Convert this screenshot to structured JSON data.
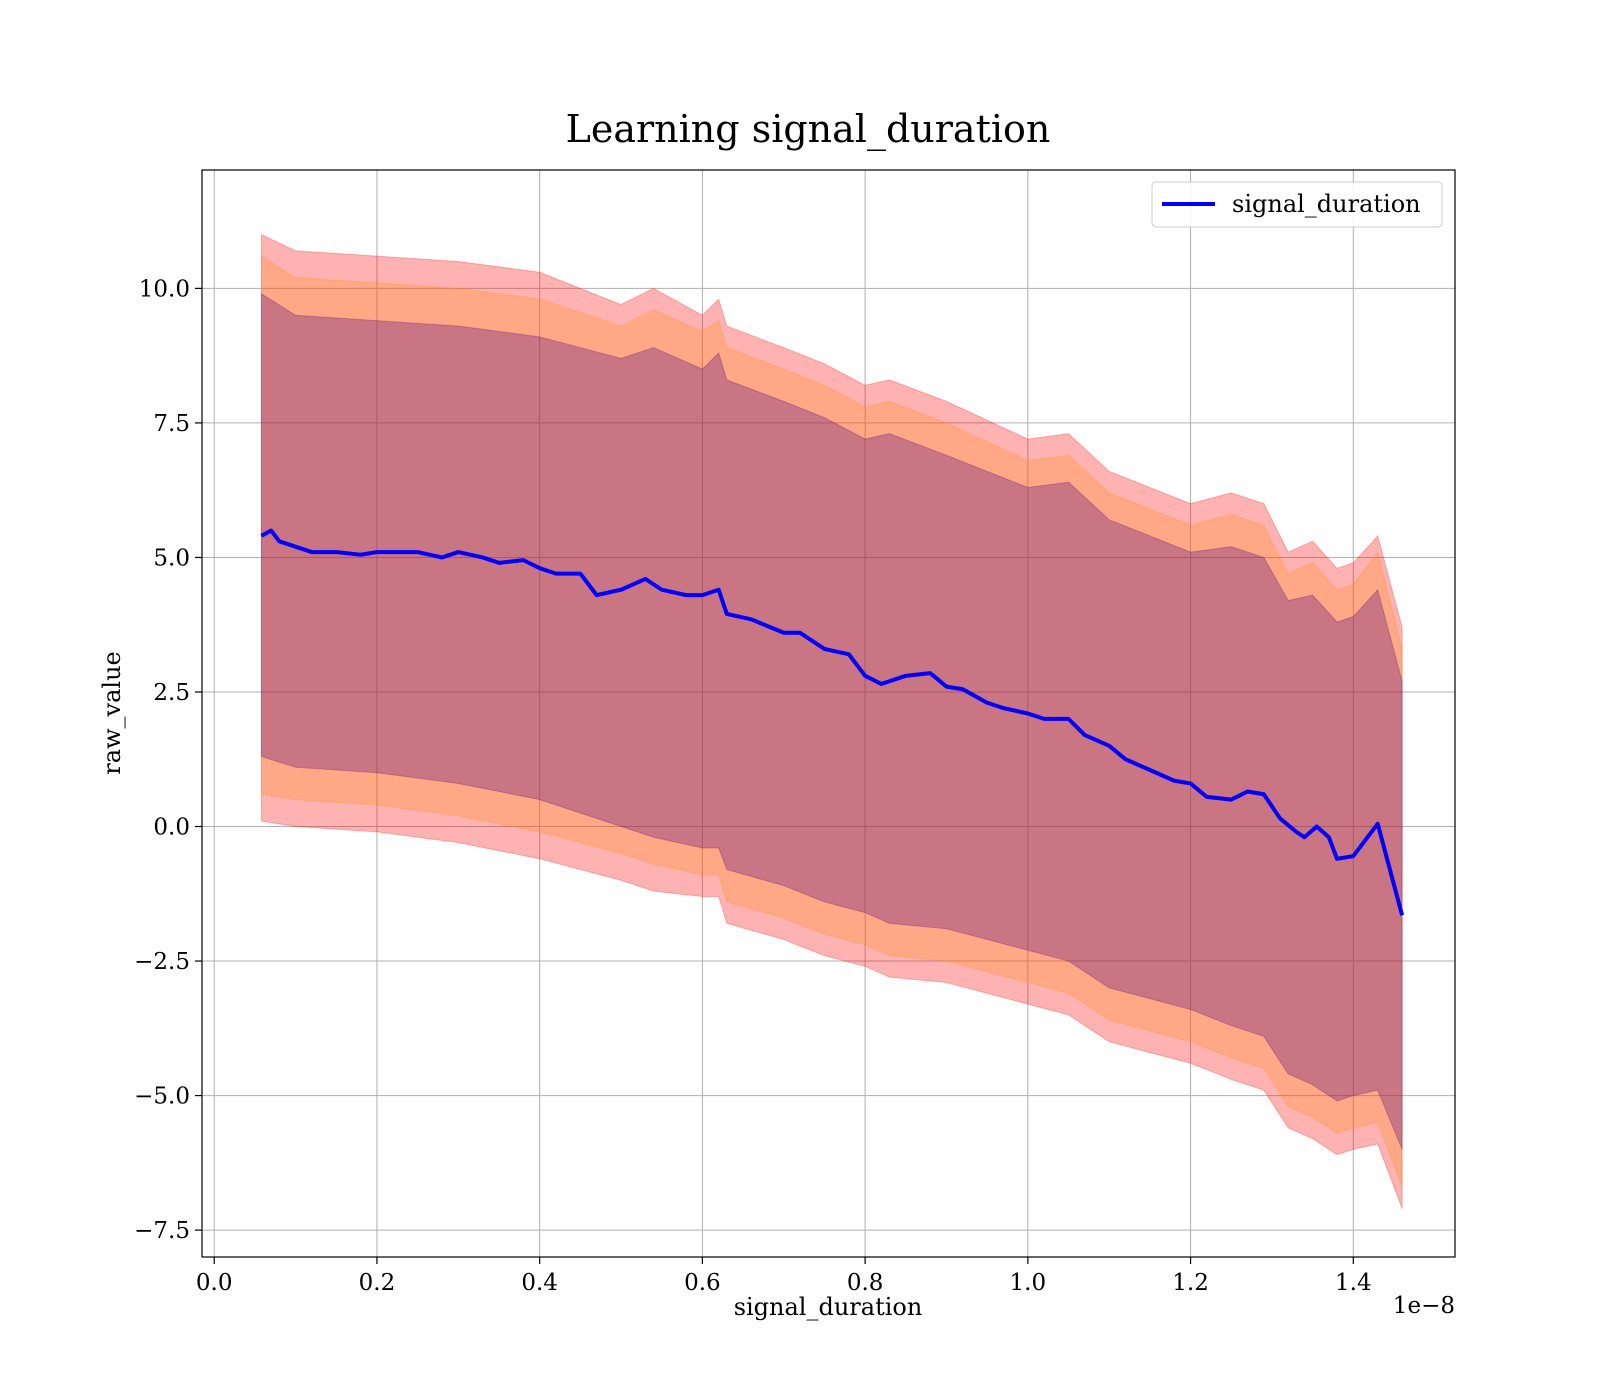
{
  "chart_data": {
    "type": "line",
    "title": "Learning signal_duration",
    "xlabel": "signal_duration",
    "ylabel": "raw_value",
    "x_offset_label": "1e−8",
    "xlim": [
      -0.015,
      1.525
    ],
    "ylim": [
      -8.0,
      12.2
    ],
    "x_ticks": [
      0.0,
      0.2,
      0.4,
      0.6,
      0.8,
      1.0,
      1.2,
      1.4
    ],
    "x_tick_labels": [
      "0.0",
      "0.2",
      "0.4",
      "0.6",
      "0.8",
      "1.0",
      "1.2",
      "1.4"
    ],
    "y_ticks": [
      -7.5,
      -5.0,
      -2.5,
      0.0,
      2.5,
      5.0,
      7.5,
      10.0
    ],
    "y_tick_labels": [
      "−7.5",
      "−5.0",
      "−2.5",
      "0.0",
      "2.5",
      "5.0",
      "7.5",
      "10.0"
    ],
    "grid": true,
    "legend_position": "top-right",
    "series": [
      {
        "name": "signal_duration",
        "color": "#0000ff",
        "x": [
          0.058,
          0.07,
          0.08,
          0.1,
          0.12,
          0.15,
          0.18,
          0.2,
          0.22,
          0.25,
          0.28,
          0.3,
          0.33,
          0.35,
          0.38,
          0.4,
          0.42,
          0.45,
          0.47,
          0.5,
          0.53,
          0.55,
          0.58,
          0.6,
          0.62,
          0.63,
          0.66,
          0.7,
          0.72,
          0.75,
          0.78,
          0.8,
          0.82,
          0.85,
          0.88,
          0.9,
          0.92,
          0.95,
          0.97,
          1.0,
          1.02,
          1.05,
          1.07,
          1.1,
          1.12,
          1.15,
          1.18,
          1.2,
          1.22,
          1.25,
          1.27,
          1.29,
          1.31,
          1.33,
          1.34,
          1.355,
          1.37,
          1.38,
          1.4,
          1.43,
          1.46
        ],
        "y": [
          5.4,
          5.5,
          5.3,
          5.2,
          5.1,
          5.1,
          5.05,
          5.1,
          5.1,
          5.1,
          5.0,
          5.1,
          5.0,
          4.9,
          4.95,
          4.8,
          4.7,
          4.7,
          4.3,
          4.4,
          4.6,
          4.4,
          4.3,
          4.3,
          4.4,
          3.95,
          3.85,
          3.6,
          3.6,
          3.3,
          3.2,
          2.8,
          2.65,
          2.8,
          2.85,
          2.6,
          2.55,
          2.3,
          2.2,
          2.1,
          2.0,
          2.0,
          1.7,
          1.5,
          1.25,
          1.05,
          0.85,
          0.8,
          0.55,
          0.5,
          0.65,
          0.6,
          0.15,
          -0.1,
          -0.2,
          0.0,
          -0.2,
          -0.6,
          -0.55,
          0.05,
          -1.65
        ]
      }
    ],
    "bands": [
      {
        "color": "#ff0000",
        "opacity": 0.3,
        "x": [
          0.058,
          0.1,
          0.2,
          0.3,
          0.4,
          0.5,
          0.54,
          0.6,
          0.62,
          0.63,
          0.7,
          0.75,
          0.8,
          0.83,
          0.9,
          1.0,
          1.05,
          1.1,
          1.2,
          1.25,
          1.29,
          1.32,
          1.35,
          1.38,
          1.4,
          1.43,
          1.46
        ],
        "upper": [
          11.0,
          10.7,
          10.6,
          10.5,
          10.3,
          9.7,
          10.0,
          9.5,
          9.8,
          9.3,
          8.9,
          8.6,
          8.2,
          8.3,
          7.9,
          7.2,
          7.3,
          6.6,
          6.0,
          6.2,
          6.0,
          5.1,
          5.3,
          4.8,
          4.9,
          5.4,
          3.7
        ],
        "lower": [
          0.1,
          0.0,
          -0.1,
          -0.3,
          -0.6,
          -1.0,
          -1.2,
          -1.3,
          -1.3,
          -1.8,
          -2.1,
          -2.4,
          -2.6,
          -2.8,
          -2.9,
          -3.3,
          -3.5,
          -4.0,
          -4.4,
          -4.7,
          -4.9,
          -5.6,
          -5.8,
          -6.1,
          -6.0,
          -5.9,
          -7.1
        ]
      },
      {
        "color": "#ff8c00",
        "opacity": 0.25,
        "x": [
          0.058,
          0.1,
          0.2,
          0.3,
          0.4,
          0.5,
          0.54,
          0.6,
          0.62,
          0.63,
          0.7,
          0.75,
          0.8,
          0.83,
          0.9,
          1.0,
          1.05,
          1.1,
          1.2,
          1.25,
          1.29,
          1.32,
          1.35,
          1.38,
          1.4,
          1.43,
          1.46
        ],
        "upper": [
          10.6,
          10.2,
          10.1,
          10.0,
          9.8,
          9.3,
          9.6,
          9.2,
          9.4,
          8.9,
          8.5,
          8.2,
          7.8,
          7.9,
          7.5,
          6.8,
          6.9,
          6.2,
          5.6,
          5.8,
          5.6,
          4.7,
          4.9,
          4.4,
          4.5,
          5.1,
          3.3
        ],
        "lower": [
          0.6,
          0.5,
          0.4,
          0.2,
          -0.1,
          -0.5,
          -0.7,
          -0.9,
          -0.9,
          -1.4,
          -1.7,
          -2.0,
          -2.2,
          -2.4,
          -2.5,
          -2.9,
          -3.1,
          -3.6,
          -4.0,
          -4.3,
          -4.5,
          -5.2,
          -5.4,
          -5.7,
          -5.6,
          -5.5,
          -6.7
        ]
      },
      {
        "color": "#4b0082",
        "opacity": 0.3,
        "x": [
          0.058,
          0.1,
          0.2,
          0.3,
          0.4,
          0.5,
          0.54,
          0.6,
          0.62,
          0.63,
          0.7,
          0.75,
          0.8,
          0.83,
          0.9,
          1.0,
          1.05,
          1.1,
          1.2,
          1.25,
          1.29,
          1.32,
          1.35,
          1.38,
          1.4,
          1.43,
          1.46
        ],
        "upper": [
          9.9,
          9.5,
          9.4,
          9.3,
          9.1,
          8.7,
          8.9,
          8.5,
          8.8,
          8.3,
          7.9,
          7.6,
          7.2,
          7.3,
          6.9,
          6.3,
          6.4,
          5.7,
          5.1,
          5.2,
          5.0,
          4.2,
          4.3,
          3.8,
          3.9,
          4.4,
          2.7
        ],
        "lower": [
          1.3,
          1.1,
          1.0,
          0.8,
          0.5,
          0.0,
          -0.2,
          -0.4,
          -0.4,
          -0.8,
          -1.1,
          -1.4,
          -1.6,
          -1.8,
          -1.9,
          -2.3,
          -2.5,
          -3.0,
          -3.4,
          -3.7,
          -3.9,
          -4.6,
          -4.8,
          -5.1,
          -5.0,
          -4.9,
          -6.0
        ]
      }
    ]
  }
}
